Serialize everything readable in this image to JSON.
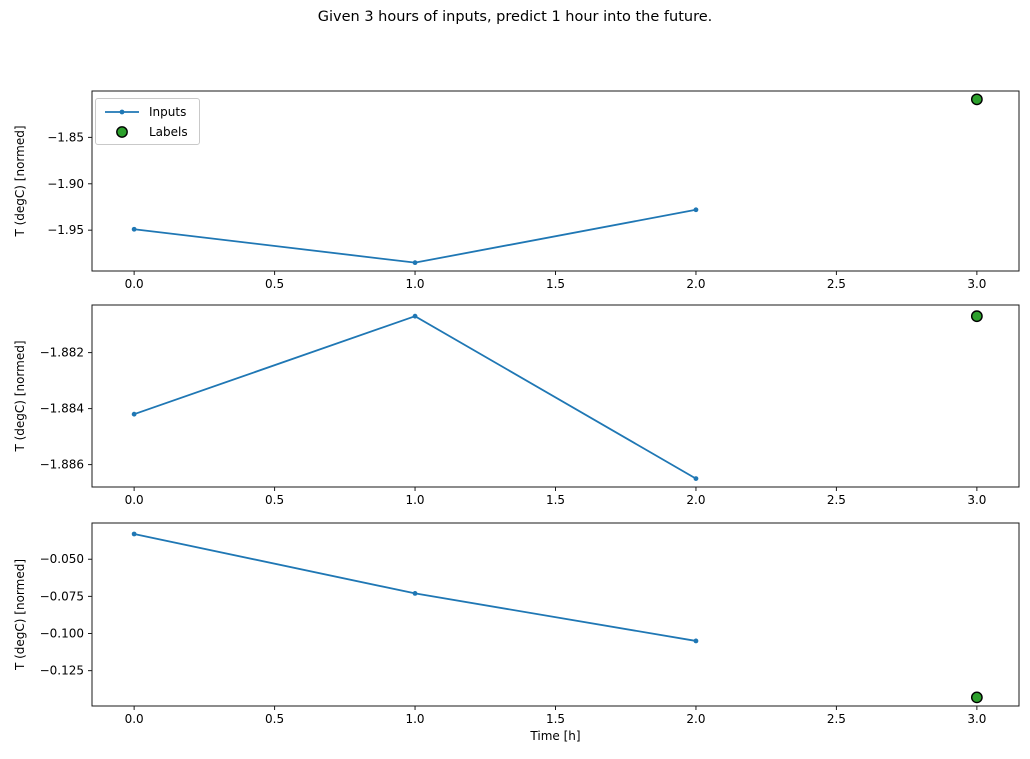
{
  "figure": {
    "title": "Given 3 hours of inputs, predict 1 hour into the future."
  },
  "colors": {
    "inputs_line": "#1f77b4",
    "labels_marker_fill": "#2ca02c",
    "labels_marker_edge": "#000000",
    "spine": "#1a1a1a",
    "tick": "#1a1a1a",
    "text": "#000000"
  },
  "legend": {
    "items": [
      {
        "label": "Inputs",
        "glyph": "line-with-dot-icon"
      },
      {
        "label": "Labels",
        "glyph": "filled-circle-icon"
      }
    ]
  },
  "chart_data": [
    {
      "type": "line",
      "title": "",
      "xlabel": "",
      "ylabel": "T (degC) [normed]",
      "xlim": [
        -0.15,
        3.15
      ],
      "ylim": [
        -1.994,
        -1.8
      ],
      "grid": false,
      "legend_visible": true,
      "legend_location": "upper left",
      "x_ticks": {
        "values": [
          0.0,
          0.5,
          1.0,
          1.5,
          2.0,
          2.5,
          3.0
        ],
        "labels": [
          "0.0",
          "0.5",
          "1.0",
          "1.5",
          "2.0",
          "2.5",
          "3.0"
        ]
      },
      "y_ticks": {
        "values": [
          -1.85,
          -1.9,
          -1.95
        ],
        "labels": [
          "−1.85",
          "−1.90",
          "−1.95"
        ]
      },
      "series": [
        {
          "name": "Inputs",
          "type": "line_marker",
          "x": [
            0,
            1,
            2
          ],
          "y": [
            -1.949,
            -1.985,
            -1.928
          ]
        },
        {
          "name": "Labels",
          "type": "scatter",
          "x": [
            3
          ],
          "y": [
            -1.809
          ]
        }
      ]
    },
    {
      "type": "line",
      "title": "",
      "xlabel": "",
      "ylabel": "T (degC) [normed]",
      "xlim": [
        -0.15,
        3.15
      ],
      "ylim": [
        -1.8868,
        -1.8803
      ],
      "grid": false,
      "legend_visible": false,
      "x_ticks": {
        "values": [
          0.0,
          0.5,
          1.0,
          1.5,
          2.0,
          2.5,
          3.0
        ],
        "labels": [
          "0.0",
          "0.5",
          "1.0",
          "1.5",
          "2.0",
          "2.5",
          "3.0"
        ]
      },
      "y_ticks": {
        "values": [
          -1.882,
          -1.884,
          -1.886
        ],
        "labels": [
          "−1.882",
          "−1.884",
          "−1.886"
        ]
      },
      "series": [
        {
          "name": "Inputs",
          "type": "line_marker",
          "x": [
            0,
            1,
            2
          ],
          "y": [
            -1.8842,
            -1.8807,
            -1.8865
          ]
        },
        {
          "name": "Labels",
          "type": "scatter",
          "x": [
            3
          ],
          "y": [
            -1.8807
          ]
        }
      ]
    },
    {
      "type": "line",
      "title": "",
      "xlabel": "Time [h]",
      "ylabel": "T (degC) [normed]",
      "xlim": [
        -0.15,
        3.15
      ],
      "ylim": [
        -0.1488,
        -0.0256
      ],
      "grid": false,
      "legend_visible": false,
      "x_ticks": {
        "values": [
          0.0,
          0.5,
          1.0,
          1.5,
          2.0,
          2.5,
          3.0
        ],
        "labels": [
          "0.0",
          "0.5",
          "1.0",
          "1.5",
          "2.0",
          "2.5",
          "3.0"
        ]
      },
      "y_ticks": {
        "values": [
          -0.05,
          -0.075,
          -0.1,
          -0.125
        ],
        "labels": [
          "−0.050",
          "−0.075",
          "−0.100",
          "−0.125"
        ]
      },
      "series": [
        {
          "name": "Inputs",
          "type": "line_marker",
          "x": [
            0,
            1,
            2
          ],
          "y": [
            -0.033,
            -0.073,
            -0.105
          ]
        },
        {
          "name": "Labels",
          "type": "scatter",
          "x": [
            3
          ],
          "y": [
            -0.143
          ]
        }
      ]
    }
  ]
}
